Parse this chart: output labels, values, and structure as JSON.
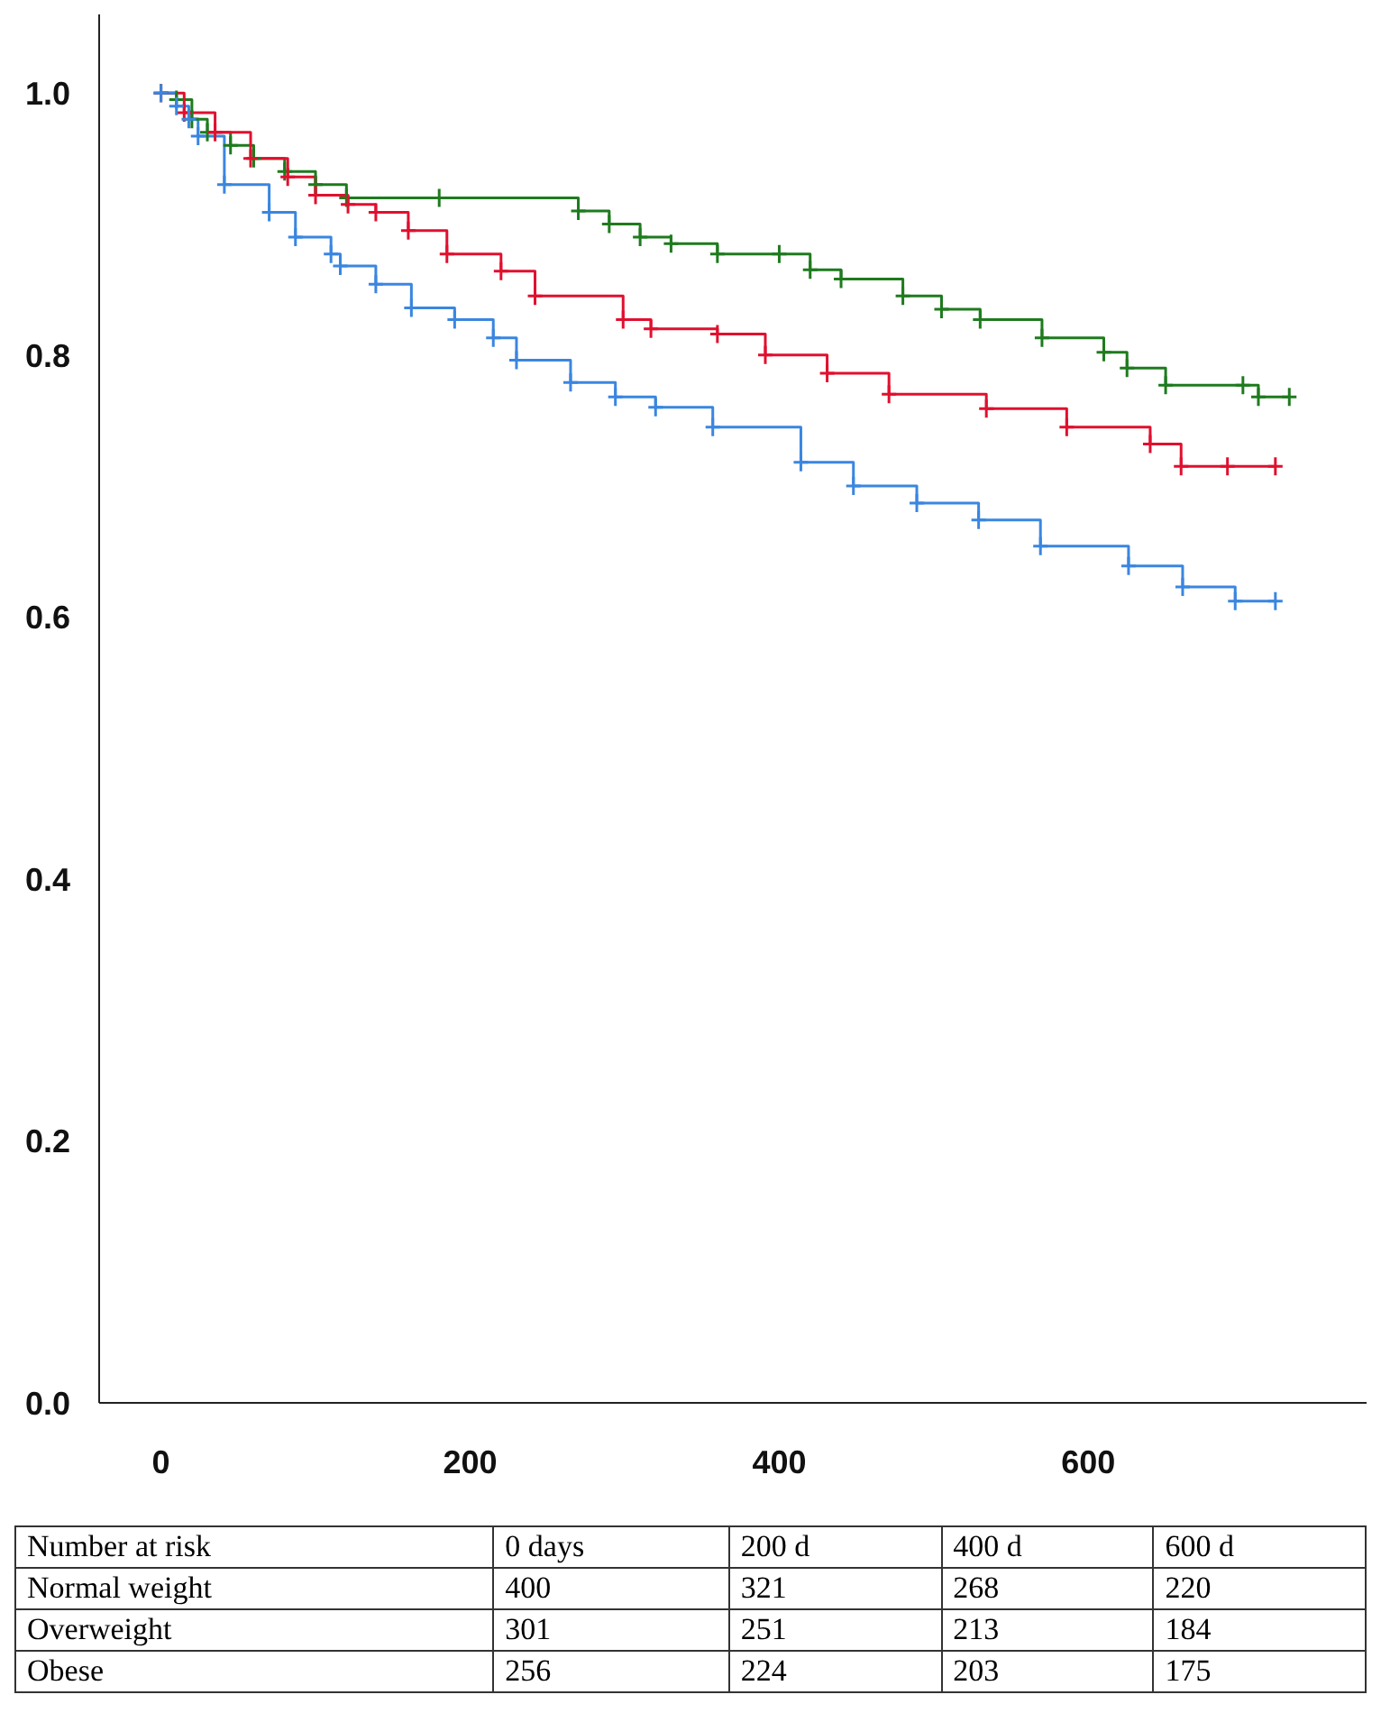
{
  "chart_data": {
    "type": "step",
    "xlim": [
      -40,
      780
    ],
    "ylim": [
      0,
      1.06
    ],
    "xticks": [
      0,
      200,
      400,
      600
    ],
    "yticks": [
      {
        "value": 0,
        "label": "0.0"
      },
      {
        "value": 0.2,
        "label": "0.2"
      },
      {
        "value": 0.4,
        "label": "0.4"
      },
      {
        "value": 0.6,
        "label": "0.6"
      },
      {
        "value": 0.8,
        "label": "0.8"
      },
      {
        "value": 1,
        "label": "1.0"
      }
    ],
    "grid": false,
    "legend": false,
    "marker": "cross",
    "line_style": "solid",
    "series": [
      {
        "color": "#1e7b1e",
        "x": [
          0,
          10,
          20,
          30,
          45,
          60,
          80,
          100,
          120,
          180,
          270,
          290,
          310,
          330,
          360,
          400,
          420,
          440,
          480,
          505,
          530,
          570,
          610,
          625,
          650,
          700,
          710,
          730
        ],
        "values": [
          1.0,
          0.995,
          0.98,
          0.97,
          0.96,
          0.95,
          0.94,
          0.93,
          0.92,
          0.92,
          0.91,
          0.9,
          0.89,
          0.885,
          0.877,
          0.877,
          0.865,
          0.858,
          0.845,
          0.835,
          0.827,
          0.813,
          0.802,
          0.79,
          0.777,
          0.777,
          0.768,
          0.768
        ]
      },
      {
        "color": "#e0102f",
        "x": [
          0,
          15,
          35,
          58,
          82,
          100,
          121,
          139,
          160,
          185,
          220,
          242,
          299,
          317,
          360,
          391,
          431,
          471,
          534,
          586,
          640,
          660,
          690,
          721
        ],
        "values": [
          1.0,
          0.985,
          0.97,
          0.95,
          0.936,
          0.922,
          0.915,
          0.909,
          0.895,
          0.877,
          0.864,
          0.845,
          0.827,
          0.82,
          0.816,
          0.8,
          0.786,
          0.77,
          0.759,
          0.745,
          0.732,
          0.715,
          0.715,
          0.715
        ]
      },
      {
        "color": "#3a86e0",
        "x": [
          0,
          10,
          18,
          24,
          41,
          70,
          87,
          110,
          116,
          139,
          162,
          190,
          215,
          230,
          265,
          294,
          320,
          357,
          414,
          448,
          489,
          529,
          569,
          626,
          661,
          695,
          721
        ],
        "values": [
          1.0,
          0.99,
          0.98,
          0.967,
          0.93,
          0.909,
          0.89,
          0.877,
          0.868,
          0.854,
          0.836,
          0.827,
          0.813,
          0.796,
          0.779,
          0.768,
          0.76,
          0.745,
          0.718,
          0.7,
          0.687,
          0.674,
          0.654,
          0.639,
          0.623,
          0.612,
          0.612
        ]
      }
    ],
    "annotations": [
      "Number at risk",
      "0 days",
      "200 d",
      "400 d",
      "600 d",
      "Normal weight",
      "400",
      "321",
      "268",
      "220",
      "Overweight",
      "301",
      "251",
      "213",
      "184",
      "Obese",
      "256",
      "224",
      "203",
      "175"
    ]
  }
}
